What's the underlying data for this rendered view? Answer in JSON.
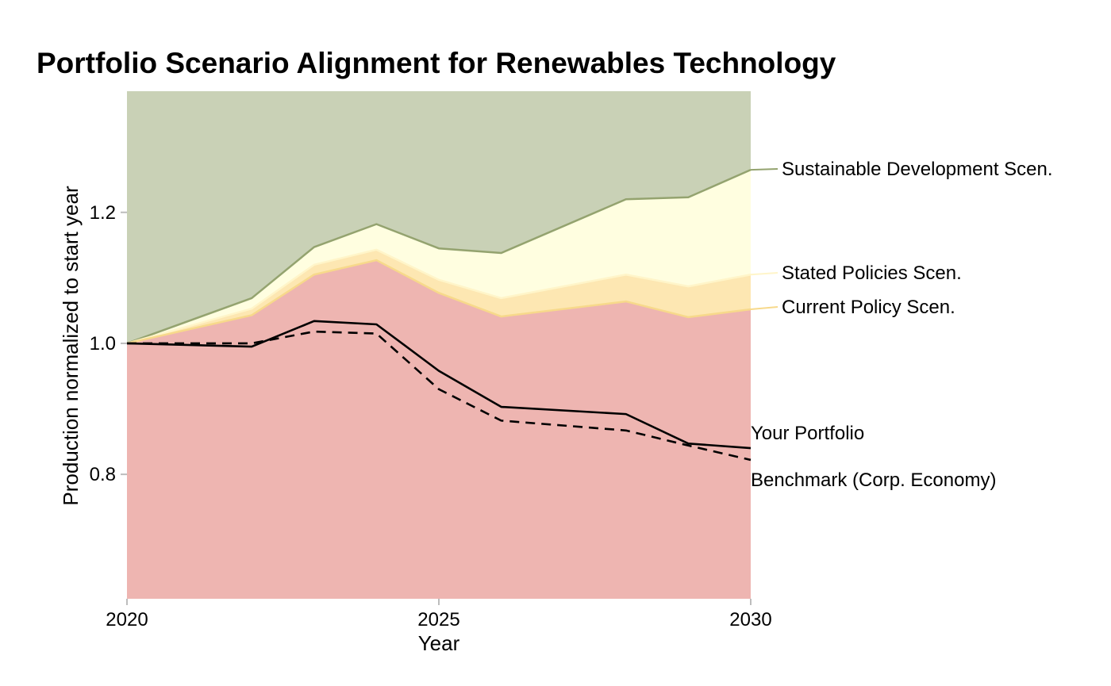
{
  "chart_data": {
    "type": "area",
    "title": "Portfolio Scenario Alignment for Renewables Technology",
    "xlabel": "Year",
    "ylabel": "Production normalized to start year",
    "xlim": [
      2020,
      2030
    ],
    "ylim": [
      0.61,
      1.385
    ],
    "x_ticks": [
      2020,
      2025,
      2030
    ],
    "y_ticks": [
      0.8,
      1.0,
      1.2
    ],
    "grid": false,
    "legend": "direct labels at right end of lines",
    "x": [
      2020,
      2022,
      2023,
      2024,
      2025,
      2026,
      2028,
      2029,
      2030
    ],
    "bands": [
      {
        "name": "below",
        "color": "#eeb5b1",
        "values": null
      },
      {
        "name": "current",
        "color": "#fde7b2",
        "values": null
      },
      {
        "name": "stated",
        "color": "#fffee0",
        "values": null
      },
      {
        "name": "above",
        "color": "#c9d1b6",
        "values": null
      }
    ],
    "scenario_lines": [
      {
        "name": "Sustainable Development Scen.",
        "color": "#94a36f",
        "values": [
          1.0,
          1.069,
          1.147,
          1.182,
          1.145,
          1.138,
          1.22,
          1.223,
          1.265
        ]
      },
      {
        "name": "Stated Policies Scen.",
        "color": "#fff5c9",
        "values": [
          1.0,
          1.053,
          1.12,
          1.143,
          1.097,
          1.069,
          1.105,
          1.087,
          1.105
        ]
      },
      {
        "name": "Current Policy Scen.",
        "color": "#f7d98b",
        "values": [
          1.0,
          1.043,
          1.105,
          1.127,
          1.077,
          1.041,
          1.064,
          1.04,
          1.052
        ]
      }
    ],
    "series": [
      {
        "name": "Your Portfolio",
        "style": "solid",
        "color": "#000000",
        "values": [
          1.0,
          0.995,
          1.034,
          1.029,
          0.958,
          0.903,
          0.892,
          0.847,
          0.84
        ]
      },
      {
        "name": "Benchmark (Corp. Economy)",
        "style": "dashed",
        "color": "#000000",
        "values": [
          1.0,
          1.0,
          1.018,
          1.015,
          0.93,
          0.882,
          0.867,
          0.844,
          0.822
        ]
      }
    ]
  }
}
